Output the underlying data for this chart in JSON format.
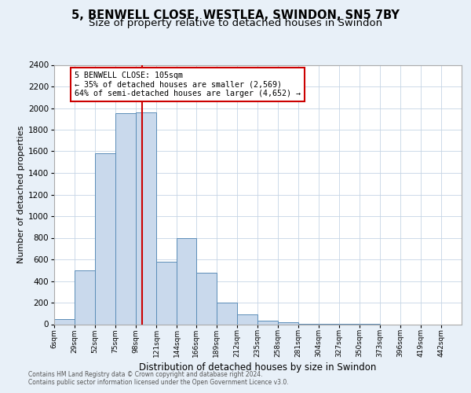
{
  "title": "5, BENWELL CLOSE, WESTLEA, SWINDON, SN5 7BY",
  "subtitle": "Size of property relative to detached houses in Swindon",
  "xlabel": "Distribution of detached houses by size in Swindon",
  "ylabel": "Number of detached properties",
  "annotation_line1": "5 BENWELL CLOSE: 105sqm",
  "annotation_line2": "← 35% of detached houses are smaller (2,569)",
  "annotation_line3": "64% of semi-detached houses are larger (4,652) →",
  "footnote1": "Contains HM Land Registry data © Crown copyright and database right 2024.",
  "footnote2": "Contains public sector information licensed under the Open Government Licence v3.0.",
  "bin_edges": [
    6,
    29,
    52,
    75,
    98,
    121,
    144,
    166,
    189,
    212,
    235,
    258,
    281,
    304,
    327,
    350,
    373,
    396,
    419,
    442,
    465
  ],
  "bin_counts": [
    50,
    500,
    1580,
    1950,
    1960,
    580,
    800,
    480,
    200,
    90,
    30,
    15,
    5,
    3,
    2,
    1,
    0,
    0,
    0,
    0
  ],
  "bar_color": "#c9d9ec",
  "bar_edge_color": "#5b8db8",
  "vline_color": "#cc0000",
  "vline_x": 105,
  "ylim": [
    0,
    2400
  ],
  "yticks": [
    0,
    200,
    400,
    600,
    800,
    1000,
    1200,
    1400,
    1600,
    1800,
    2000,
    2200,
    2400
  ],
  "bg_color": "#e8f0f8",
  "plot_bg_color": "#ffffff",
  "grid_color": "#c5d5e5",
  "annotation_box_color": "#cc0000",
  "title_fontsize": 10.5,
  "subtitle_fontsize": 9.5
}
